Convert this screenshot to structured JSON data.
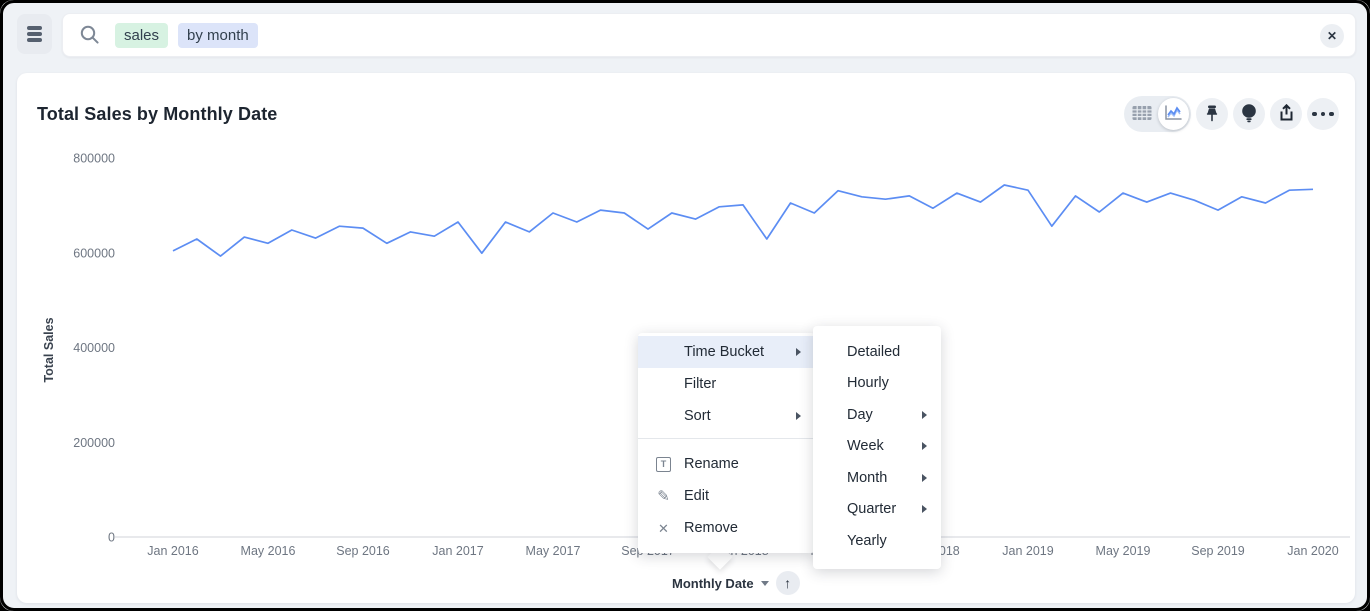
{
  "topbar": {
    "search_tokens": [
      {
        "text": "sales",
        "type": "measure"
      },
      {
        "text": "by month",
        "type": "date"
      }
    ]
  },
  "card": {
    "title": "Total Sales by Monthly Date"
  },
  "toolbar": {
    "more_dots": "•••"
  },
  "icons": {
    "database": "stacked-disks",
    "search": "magnifier",
    "close": "✕",
    "table_view": "grid",
    "chart_view": "line-zigzag",
    "pin": "pushpin",
    "spotiq": "lightbulb",
    "share": "upload-arrow",
    "more": "ellipsis",
    "rename": "T-in-frame",
    "edit": "✎",
    "remove": "✕",
    "sort_ascending": "↑",
    "caret_down": "▾",
    "submenu_chevron": "▸"
  },
  "x_axis_control": {
    "label": "Monthly Date",
    "sort_arrow": "↑"
  },
  "context_menu": {
    "items": [
      {
        "label": "Time Bucket",
        "has_submenu": true,
        "highlighted": true
      },
      {
        "label": "Filter",
        "has_submenu": false
      },
      {
        "label": "Sort",
        "has_submenu": true
      }
    ],
    "actions": [
      {
        "label": "Rename",
        "icon": "rename-icon",
        "glyph": "T"
      },
      {
        "label": "Edit",
        "icon": "edit-icon",
        "glyph": "✎"
      },
      {
        "label": "Remove",
        "icon": "remove-icon",
        "glyph": "✕"
      }
    ]
  },
  "time_bucket_submenu": {
    "items": [
      {
        "label": "Detailed",
        "has_submenu": false
      },
      {
        "label": "Hourly",
        "has_submenu": false
      },
      {
        "label": "Day",
        "has_submenu": true
      },
      {
        "label": "Week",
        "has_submenu": true
      },
      {
        "label": "Month",
        "has_submenu": true
      },
      {
        "label": "Quarter",
        "has_submenu": true
      },
      {
        "label": "Yearly",
        "has_submenu": false
      }
    ]
  },
  "colors": {
    "line": "#5c8df3",
    "axis_line": "#d9dce1",
    "tick_text": "#6e7682",
    "axis_title_text": "#39424e",
    "menu_highlight": "#e8eef9",
    "token_measure_bg": "#d7f2e2",
    "token_date_bg": "#dce4f9"
  },
  "chart_data": {
    "type": "line",
    "title": "Total Sales by Monthly Date",
    "xlabel": "Monthly Date",
    "ylabel": "Total Sales",
    "ylim": [
      0,
      800000
    ],
    "y_ticks": [
      0,
      200000,
      400000,
      600000,
      800000
    ],
    "x_tick_every": 4,
    "grid": false,
    "legend": false,
    "x": [
      "Jan 2016",
      "Feb 2016",
      "Mar 2016",
      "Apr 2016",
      "May 2016",
      "Jun 2016",
      "Jul 2016",
      "Aug 2016",
      "Sep 2016",
      "Oct 2016",
      "Nov 2016",
      "Dec 2016",
      "Jan 2017",
      "Feb 2017",
      "Mar 2017",
      "Apr 2017",
      "May 2017",
      "Jun 2017",
      "Jul 2017",
      "Aug 2017",
      "Sep 2017",
      "Oct 2017",
      "Nov 2017",
      "Dec 2017",
      "Jan 2018",
      "Feb 2018",
      "Mar 2018",
      "Apr 2018",
      "May 2018",
      "Jun 2018",
      "Jul 2018",
      "Aug 2018",
      "Sep 2018",
      "Oct 2018",
      "Nov 2018",
      "Dec 2018",
      "Jan 2019",
      "Feb 2019",
      "Mar 2019",
      "Apr 2019",
      "May 2019",
      "Jun 2019",
      "Jul 2019",
      "Aug 2019",
      "Sep 2019",
      "Oct 2019",
      "Nov 2019",
      "Dec 2019",
      "Jan 2020"
    ],
    "values": [
      604000,
      629000,
      593000,
      633000,
      620000,
      648000,
      631000,
      656000,
      652000,
      620000,
      644000,
      635000,
      665000,
      599000,
      665000,
      644000,
      684000,
      665000,
      690000,
      684000,
      650000,
      684000,
      671000,
      697000,
      701000,
      629000,
      705000,
      684000,
      731000,
      718000,
      713000,
      720000,
      694000,
      726000,
      707000,
      743000,
      732000,
      656000,
      720000,
      686000,
      726000,
      707000,
      726000,
      711000,
      690000,
      718000,
      705000,
      732000,
      734000
    ]
  }
}
